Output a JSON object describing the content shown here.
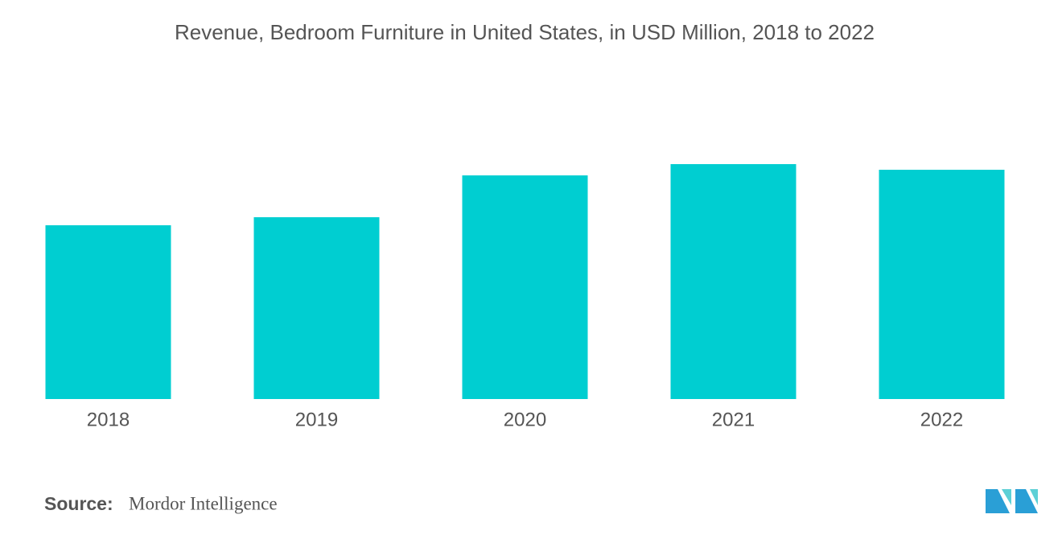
{
  "chart_data": {
    "type": "bar",
    "title": "Revenue, Bedroom Furniture in United States, in USD Million, 2018 to 2022",
    "categories": [
      "2018",
      "2019",
      "2020",
      "2021",
      "2022"
    ],
    "values": [
      216,
      226,
      278,
      292,
      285
    ],
    "color": "#00ced1",
    "source_label": "Source:",
    "source": "Mordor Intelligence"
  }
}
